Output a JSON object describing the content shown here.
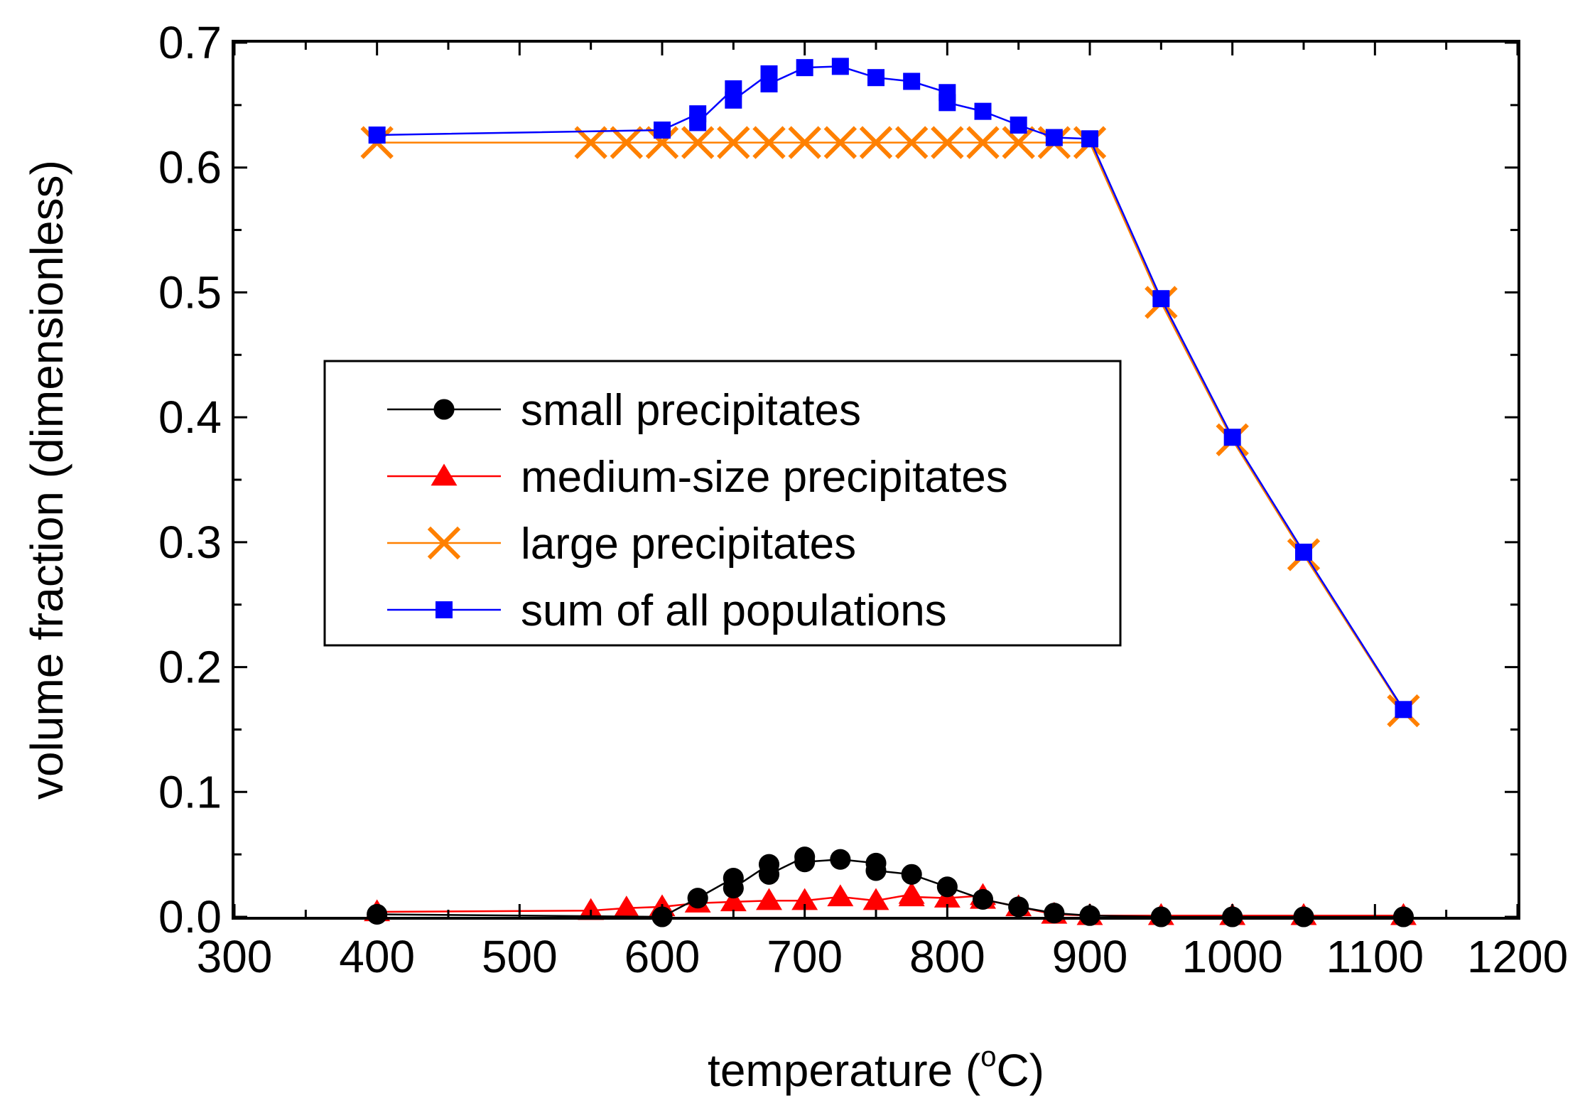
{
  "chart_data": {
    "type": "scatter",
    "xlabel": "temperature (",
    "xlabel_superscript": "o",
    "xlabel_suffix": "C)",
    "ylabel": "volume fraction  (dimensionless)",
    "xlim": [
      300,
      1200
    ],
    "ylim": [
      0,
      0.7
    ],
    "xticks": [
      "300",
      "400",
      "500",
      "600",
      "700",
      "800",
      "900",
      "1000",
      "1100",
      "1200"
    ],
    "yticks": [
      "0.0",
      "0.1",
      "0.2",
      "0.3",
      "0.4",
      "0.5",
      "0.6",
      "0.7"
    ],
    "grid": false,
    "legend_position": "center-left",
    "series": [
      {
        "name": "small precipitates",
        "color": "#000000",
        "marker": "circle",
        "points": [
          [
            400,
            0.002
          ],
          [
            600,
            0.0
          ],
          [
            625,
            0.015
          ],
          [
            650,
            0.031
          ],
          [
            650,
            0.023
          ],
          [
            675,
            0.042
          ],
          [
            675,
            0.034
          ],
          [
            700,
            0.048
          ],
          [
            700,
            0.044
          ],
          [
            725,
            0.046
          ],
          [
            750,
            0.043
          ],
          [
            750,
            0.037
          ],
          [
            775,
            0.034
          ],
          [
            800,
            0.024
          ],
          [
            825,
            0.014
          ],
          [
            850,
            0.008
          ],
          [
            875,
            0.003
          ],
          [
            900,
            0.001
          ],
          [
            950,
            0.0
          ],
          [
            1000,
            0.0
          ],
          [
            1050,
            0.0
          ],
          [
            1120,
            0.0
          ]
        ]
      },
      {
        "name": "medium-size  precipitates",
        "color": "#ff0000",
        "marker": "triangle",
        "points": [
          [
            400,
            0.004
          ],
          [
            550,
            0.005
          ],
          [
            575,
            0.007
          ],
          [
            600,
            0.008
          ],
          [
            625,
            0.011
          ],
          [
            650,
            0.012
          ],
          [
            675,
            0.013
          ],
          [
            700,
            0.013
          ],
          [
            725,
            0.016
          ],
          [
            750,
            0.013
          ],
          [
            775,
            0.018
          ],
          [
            775,
            0.016
          ],
          [
            800,
            0.015
          ],
          [
            825,
            0.017
          ],
          [
            825,
            0.014
          ],
          [
            850,
            0.008
          ],
          [
            875,
            0.002
          ],
          [
            900,
            0.001
          ],
          [
            950,
            0.001
          ],
          [
            1000,
            0.001
          ],
          [
            1050,
            0.001
          ],
          [
            1120,
            0.001
          ]
        ]
      },
      {
        "name": "large precipitates",
        "color": "#ff8000",
        "marker": "x",
        "points": [
          [
            400,
            0.62
          ],
          [
            550,
            0.62
          ],
          [
            575,
            0.62
          ],
          [
            600,
            0.62
          ],
          [
            625,
            0.62
          ],
          [
            650,
            0.62
          ],
          [
            675,
            0.62
          ],
          [
            700,
            0.62
          ],
          [
            725,
            0.62
          ],
          [
            750,
            0.62
          ],
          [
            775,
            0.62
          ],
          [
            800,
            0.62
          ],
          [
            825,
            0.62
          ],
          [
            850,
            0.62
          ],
          [
            875,
            0.62
          ],
          [
            900,
            0.62
          ],
          [
            950,
            0.492
          ],
          [
            1000,
            0.382
          ],
          [
            1050,
            0.29
          ],
          [
            1120,
            0.165
          ]
        ]
      },
      {
        "name": "sum of all populations",
        "color": "#0000ff",
        "marker": "square",
        "points": [
          [
            400,
            0.626
          ],
          [
            600,
            0.63
          ],
          [
            625,
            0.643
          ],
          [
            625,
            0.636
          ],
          [
            650,
            0.663
          ],
          [
            650,
            0.654
          ],
          [
            675,
            0.675
          ],
          [
            675,
            0.667
          ],
          [
            700,
            0.68
          ],
          [
            725,
            0.681
          ],
          [
            750,
            0.672
          ],
          [
            775,
            0.669
          ],
          [
            800,
            0.66
          ],
          [
            800,
            0.652
          ],
          [
            825,
            0.645
          ],
          [
            850,
            0.634
          ],
          [
            875,
            0.624
          ],
          [
            900,
            0.623
          ],
          [
            950,
            0.495
          ],
          [
            1000,
            0.384
          ],
          [
            1050,
            0.292
          ],
          [
            1120,
            0.166
          ]
        ]
      }
    ]
  }
}
